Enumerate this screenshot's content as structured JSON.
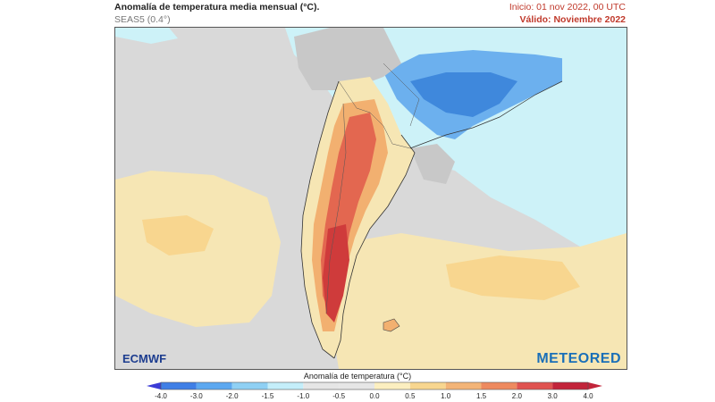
{
  "header": {
    "title": "Anomalía de temperatura media mensual (°C).",
    "subtitle": "SEAS5 (0.4°)",
    "init": "Inicio: 01 nov 2022, 00 UTC",
    "valid": "Válido: Noviembre 2022"
  },
  "logos": {
    "left": "ECMWF",
    "right": "METEORED"
  },
  "colorbar": {
    "title": "Anomalía de temperatura (°C)",
    "ticks": [
      "-4.0",
      "-3.0",
      "-2.0",
      "-1.5",
      "-1.0",
      "-0.5",
      "0.0",
      "0.5",
      "1.0",
      "1.5",
      "2.0",
      "3.0",
      "4.0"
    ],
    "colors": [
      "#3b3bd6",
      "#3f7fe6",
      "#5ca8f0",
      "#8fd0f4",
      "#c4eefa",
      "#e6e6e6",
      "#e6e6e6",
      "#fcefc0",
      "#f8d68f",
      "#f3b477",
      "#ee8a5f",
      "#e05350",
      "#c2243a"
    ]
  },
  "map_colors": {
    "ocean_neutral": "#d9d9d9",
    "land_neutral": "#c8c8c8",
    "light_cyan": "#cdf2f8",
    "blue_anomaly": "#6cb0ee",
    "dark_blue_anomaly": "#3f88dc",
    "pale_yellow": "#f6e6b4",
    "orange_anomaly": "#f2b070",
    "red_anomaly": "#e36750",
    "dark_red_anomaly": "#cf3b3b"
  }
}
